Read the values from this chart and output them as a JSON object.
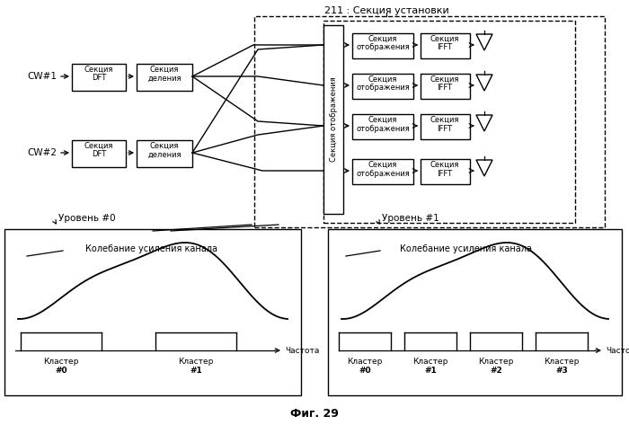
{
  "title": "211 : Секция установки",
  "fig_label": "Фиг. 29",
  "background_color": "#ffffff",
  "cw1_label": "CW#1",
  "cw2_label": "CW#2",
  "dft_label1": "Секция",
  "dft_label2": "DFT",
  "split_label1": "Секция",
  "split_label2": "деления",
  "map_sub_label1": "Секция",
  "map_sub_label2": "отображения",
  "map_center_label": "Секция отображения",
  "ifft_label1": "Секция",
  "ifft_label2": "IFFT",
  "level0_label": "Уровень #0",
  "level1_label": "Уровень #1",
  "channel_gain_label": "Колебание усиления канала",
  "freq_label": "Частота",
  "cluster_label": "Кластер"
}
